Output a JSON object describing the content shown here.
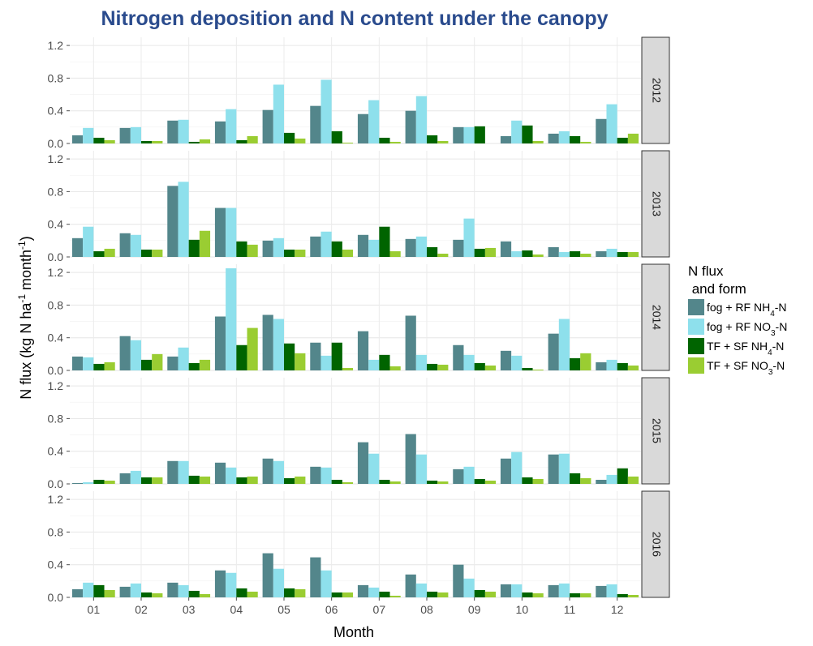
{
  "chart_data": {
    "type": "bar",
    "title": "Nitrogen deposition and N content under the canopy",
    "xlabel": "Month",
    "ylabel": "N flux (kg N ha-1 month-1)",
    "ylim": [
      0,
      1.3
    ],
    "yticks": [
      0.0,
      0.4,
      0.8,
      1.2
    ],
    "ytick_labels": [
      "0.0",
      "0.4",
      "0.8",
      "1.2"
    ],
    "categories": [
      "01",
      "02",
      "03",
      "04",
      "05",
      "06",
      "07",
      "08",
      "09",
      "10",
      "11",
      "12"
    ],
    "legend": {
      "title_line1": "N flux",
      "title_line2": " and form",
      "position": "right"
    },
    "grid": true,
    "series": [
      {
        "name": "fog + RF NH4-N",
        "color": "#53868b"
      },
      {
        "name": "fog + RF NO3-N",
        "color": "#8ee0ec"
      },
      {
        "name": "TF + SF NH4-N",
        "color": "#006400"
      },
      {
        "name": "TF + SF NO3-N",
        "color": "#9acd32"
      }
    ],
    "panels": [
      {
        "year": "2012",
        "values": [
          [
            0.1,
            0.19,
            0.28,
            0.27,
            0.41,
            0.46,
            0.36,
            0.4,
            0.2,
            0.09,
            0.12,
            0.3
          ],
          [
            0.19,
            0.2,
            0.29,
            0.42,
            0.72,
            0.78,
            0.53,
            0.58,
            0.2,
            0.28,
            0.15,
            0.48
          ],
          [
            0.07,
            0.03,
            0.02,
            0.04,
            0.13,
            0.15,
            0.07,
            0.1,
            0.21,
            0.22,
            0.09,
            0.07
          ],
          [
            0.04,
            0.03,
            0.05,
            0.09,
            0.06,
            0.01,
            0.02,
            0.03,
            0.0,
            0.03,
            0.02,
            0.12
          ]
        ]
      },
      {
        "year": "2013",
        "values": [
          [
            0.23,
            0.29,
            0.87,
            0.6,
            0.2,
            0.25,
            0.27,
            0.22,
            0.21,
            0.19,
            0.12,
            0.07
          ],
          [
            0.37,
            0.27,
            0.92,
            0.6,
            0.23,
            0.31,
            0.21,
            0.25,
            0.47,
            0.07,
            0.06,
            0.1
          ],
          [
            0.07,
            0.09,
            0.21,
            0.19,
            0.09,
            0.19,
            0.37,
            0.12,
            0.1,
            0.08,
            0.07,
            0.06
          ],
          [
            0.1,
            0.09,
            0.32,
            0.15,
            0.09,
            0.09,
            0.07,
            0.04,
            0.11,
            0.03,
            0.04,
            0.06
          ]
        ]
      },
      {
        "year": "2014",
        "values": [
          [
            0.17,
            0.42,
            0.17,
            0.66,
            0.68,
            0.34,
            0.48,
            0.67,
            0.31,
            0.24,
            0.45,
            0.1
          ],
          [
            0.16,
            0.37,
            0.28,
            1.25,
            0.63,
            0.18,
            0.13,
            0.19,
            0.19,
            0.18,
            0.63,
            0.13
          ],
          [
            0.08,
            0.13,
            0.09,
            0.31,
            0.33,
            0.34,
            0.19,
            0.08,
            0.09,
            0.03,
            0.15,
            0.09
          ],
          [
            0.1,
            0.2,
            0.13,
            0.52,
            0.21,
            0.03,
            0.05,
            0.07,
            0.06,
            0.01,
            0.21,
            0.06
          ]
        ]
      },
      {
        "year": "2015",
        "values": [
          [
            0.01,
            0.13,
            0.28,
            0.26,
            0.31,
            0.21,
            0.51,
            0.61,
            0.18,
            0.31,
            0.36,
            0.05
          ],
          [
            0.02,
            0.16,
            0.28,
            0.2,
            0.28,
            0.2,
            0.37,
            0.36,
            0.21,
            0.39,
            0.37,
            0.11
          ],
          [
            0.05,
            0.08,
            0.1,
            0.08,
            0.07,
            0.05,
            0.05,
            0.04,
            0.06,
            0.08,
            0.13,
            0.19
          ],
          [
            0.04,
            0.08,
            0.09,
            0.09,
            0.09,
            0.02,
            0.03,
            0.03,
            0.04,
            0.06,
            0.07,
            0.09
          ]
        ]
      },
      {
        "year": "2016",
        "values": [
          [
            0.1,
            0.13,
            0.18,
            0.33,
            0.54,
            0.49,
            0.15,
            0.28,
            0.4,
            0.16,
            0.15,
            0.14
          ],
          [
            0.18,
            0.17,
            0.15,
            0.3,
            0.35,
            0.33,
            0.12,
            0.17,
            0.23,
            0.16,
            0.17,
            0.16
          ],
          [
            0.15,
            0.06,
            0.08,
            0.11,
            0.11,
            0.06,
            0.07,
            0.07,
            0.09,
            0.06,
            0.05,
            0.04
          ],
          [
            0.09,
            0.05,
            0.04,
            0.07,
            0.1,
            0.06,
            0.02,
            0.06,
            0.07,
            0.05,
            0.05,
            0.03
          ]
        ]
      }
    ]
  }
}
